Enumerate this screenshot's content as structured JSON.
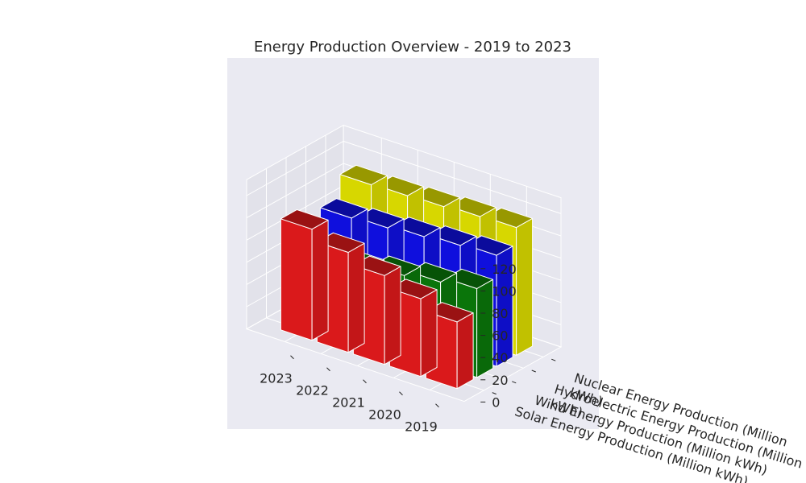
{
  "chart_data": {
    "type": "bar3d",
    "title": "Energy Production Overview - 2019 to 2023",
    "x_categories": [
      "2023",
      "2022",
      "2021",
      "2020",
      "2019"
    ],
    "y_category_lines": [
      [
        "Solar Energy Production (Million kWh)"
      ],
      [
        "Wind Energy Production (Million kWh)"
      ],
      [
        "Hydroelectric Energy Production (Million",
        "kWh)"
      ],
      [
        "Nuclear Energy Production (Million",
        "kWh)"
      ]
    ],
    "z_ticks": [
      "0",
      "20",
      "40",
      "60",
      "80",
      "100",
      "120"
    ],
    "zlim": [
      0,
      120
    ],
    "series": [
      {
        "color": "#e31a1c",
        "values": [
          100,
          90,
          80,
          70,
          60
        ]
      },
      {
        "color": "#0a7a0a",
        "values": [
          60,
          65,
          70,
          75,
          80
        ]
      },
      {
        "color": "#1010e6",
        "values": [
          90,
          92,
          95,
          98,
          100
        ]
      },
      {
        "color": "#e0e000",
        "values": [
          110,
          111,
          112,
          114,
          115
        ]
      }
    ]
  }
}
